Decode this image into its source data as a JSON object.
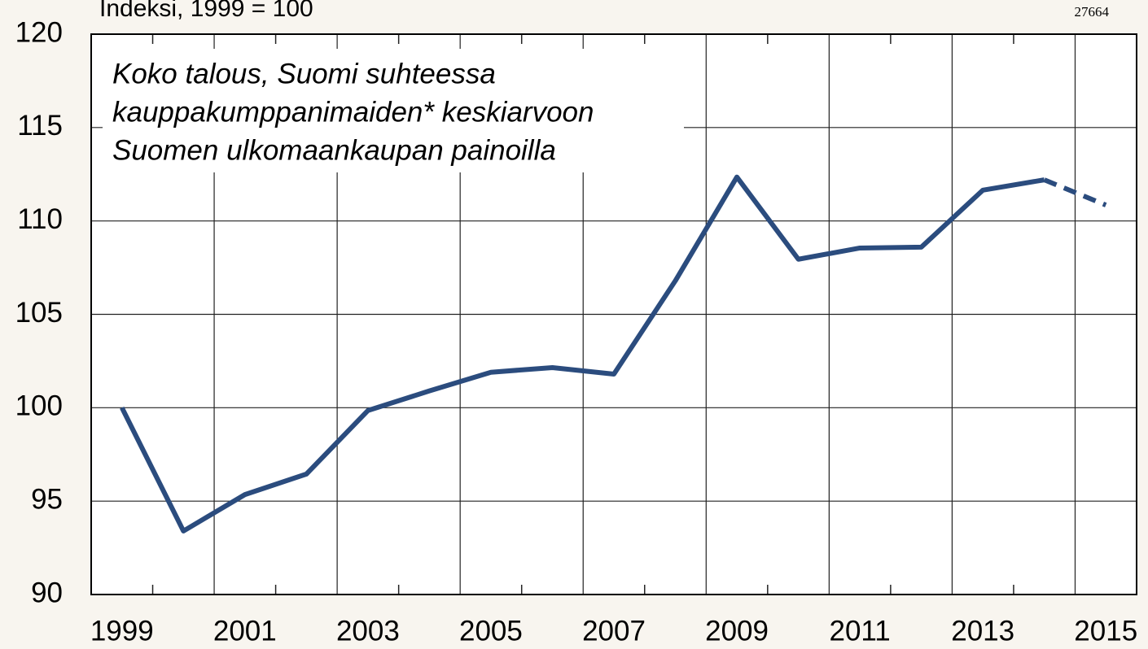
{
  "chart_data": {
    "type": "line",
    "title": "Indeksi, 1999 = 100",
    "code": "27664",
    "annotation": [
      "Koko talous, Suomi suhteessa",
      "kauppakumppanimaiden* keskiarvoon",
      "Suomen ulkomaankaupan painoilla"
    ],
    "categories": [
      "1999",
      null,
      "2001",
      null,
      "2003",
      null,
      "2005",
      null,
      "2007",
      null,
      "2009",
      null,
      "2011",
      null,
      "2013",
      null,
      "2015"
    ],
    "series": [
      {
        "color": "#2b4c7e",
        "dashed": false,
        "values": [
          100,
          93.4,
          95.35,
          96.45,
          99.85,
          100.9,
          101.9,
          102.15,
          101.8,
          106.8,
          112.35,
          107.95,
          108.55,
          108.6,
          111.65,
          112.2,
          null
        ]
      },
      {
        "color": "#2b4c7e",
        "dashed": true,
        "values": [
          null,
          null,
          null,
          null,
          null,
          null,
          null,
          null,
          null,
          null,
          null,
          null,
          null,
          null,
          null,
          112.2,
          110.85
        ]
      }
    ],
    "ylim": [
      90,
      120
    ],
    "yticks": [
      90,
      95,
      100,
      105,
      110,
      115,
      120
    ],
    "grid": true
  }
}
